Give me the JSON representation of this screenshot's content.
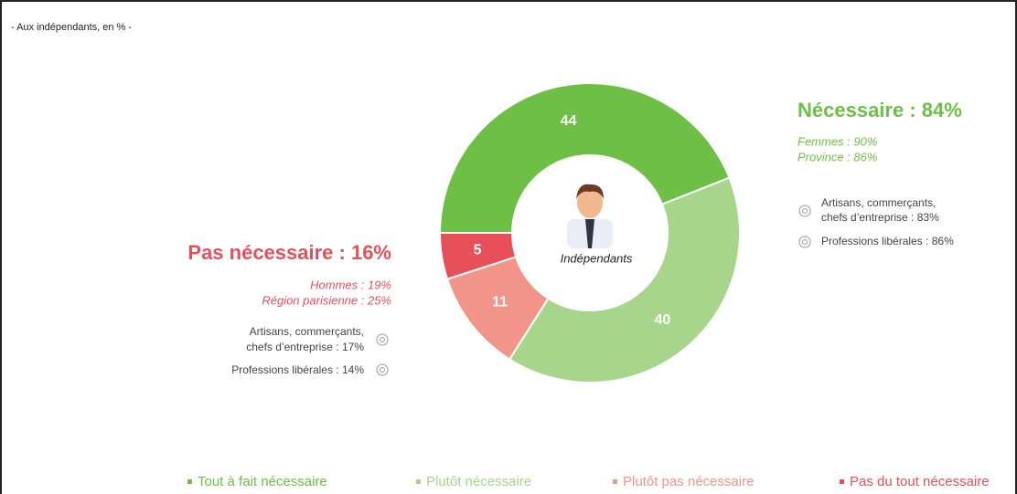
{
  "chart_data": {
    "type": "donut",
    "subtitle": "- Aux indépendants, en % -",
    "center_label": "Indépendants",
    "categories": [
      "Tout à fait nécessaire",
      "Plutôt nécessaire",
      "Plutôt pas nécessaire",
      "Pas du tout nécessaire"
    ],
    "values": [
      44,
      40,
      11,
      5
    ],
    "colors": [
      "#6dbf45",
      "#a8d58c",
      "#f3948a",
      "#e85059"
    ],
    "right_panel": {
      "heading": "Nécessaire : 84%",
      "details": [
        "Femmes : 90%",
        "Province : 86%"
      ],
      "items": [
        [
          "Artisans, commerçants,",
          "chefs d’entreprise : 83%"
        ],
        [
          "Professions libérales : 86%"
        ]
      ]
    },
    "left_panel": {
      "heading": "Pas nécessaire : 16%",
      "details": [
        "Hommes : 19%",
        "Région parisienne : 25%"
      ],
      "items": [
        [
          "Artisans, commerçants,",
          "chefs d’entreprise : 17%"
        ],
        [
          "Professions libérales : 14%"
        ]
      ]
    }
  }
}
